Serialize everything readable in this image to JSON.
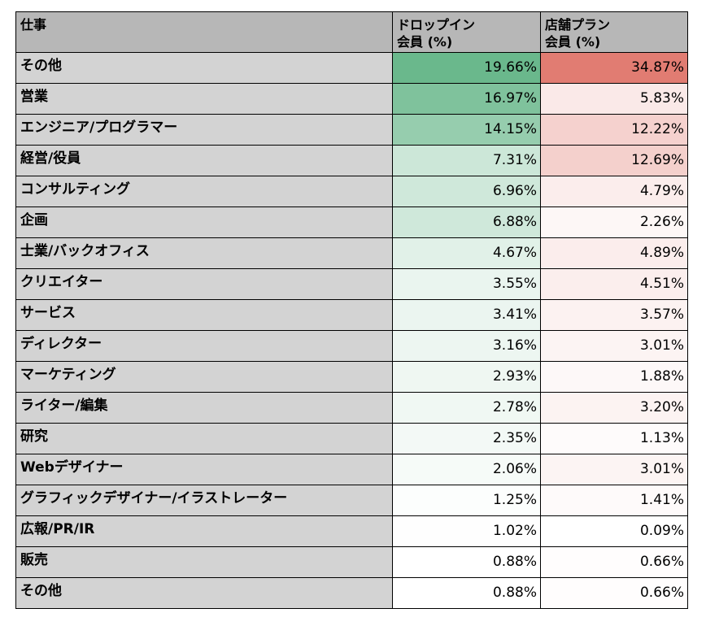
{
  "header": {
    "job": "仕事",
    "drop_in_line1": "ドロップイン",
    "drop_in_line2": "会員 (%)",
    "store_line1": "店舗プラン",
    "store_line2": "会員 (%)"
  },
  "colors": {
    "header_bg": "#b7b7b7",
    "label_bg": "#d3d3d3",
    "green_scale": "#6ab88c",
    "red_scale": "#e17c72"
  },
  "rows": [
    {
      "job": "その他",
      "drop_in": "19.66%",
      "store": "34.87%",
      "drop_in_value": 19.66,
      "store_value": 34.87
    },
    {
      "job": "営業",
      "drop_in": "16.97%",
      "store": "5.83%",
      "drop_in_value": 16.97,
      "store_value": 5.83
    },
    {
      "job": "エンジニア/プログラマー",
      "drop_in": "14.15%",
      "store": "12.22%",
      "drop_in_value": 14.15,
      "store_value": 12.22
    },
    {
      "job": "経営/役員",
      "drop_in": "7.31%",
      "store": "12.69%",
      "drop_in_value": 7.31,
      "store_value": 12.69
    },
    {
      "job": "コンサルティング",
      "drop_in": "6.96%",
      "store": "4.79%",
      "drop_in_value": 6.96,
      "store_value": 4.79
    },
    {
      "job": "企画",
      "drop_in": "6.88%",
      "store": "2.26%",
      "drop_in_value": 6.88,
      "store_value": 2.26
    },
    {
      "job": "士業/バックオフィス",
      "drop_in": "4.67%",
      "store": "4.89%",
      "drop_in_value": 4.67,
      "store_value": 4.89
    },
    {
      "job": "クリエイター",
      "drop_in": "3.55%",
      "store": "4.51%",
      "drop_in_value": 3.55,
      "store_value": 4.51
    },
    {
      "job": "サービス",
      "drop_in": "3.41%",
      "store": "3.57%",
      "drop_in_value": 3.41,
      "store_value": 3.57
    },
    {
      "job": "ディレクター",
      "drop_in": "3.16%",
      "store": "3.01%",
      "drop_in_value": 3.16,
      "store_value": 3.01
    },
    {
      "job": "マーケティング",
      "drop_in": "2.93%",
      "store": "1.88%",
      "drop_in_value": 2.93,
      "store_value": 1.88
    },
    {
      "job": "ライター/編集",
      "drop_in": "2.78%",
      "store": "3.20%",
      "drop_in_value": 2.78,
      "store_value": 3.2
    },
    {
      "job": "研究",
      "drop_in": "2.35%",
      "store": "1.13%",
      "drop_in_value": 2.35,
      "store_value": 1.13
    },
    {
      "job": "Webデザイナー",
      "drop_in": "2.06%",
      "store": "3.01%",
      "drop_in_value": 2.06,
      "store_value": 3.01
    },
    {
      "job": "グラフィックデザイナー/イラストレーター",
      "drop_in": "1.25%",
      "store": "1.41%",
      "drop_in_value": 1.25,
      "store_value": 1.41
    },
    {
      "job": "広報/PR/IR",
      "drop_in": "1.02%",
      "store": "0.09%",
      "drop_in_value": 1.02,
      "store_value": 0.09
    },
    {
      "job": "販売",
      "drop_in": "0.88%",
      "store": "0.66%",
      "drop_in_value": 0.88,
      "store_value": 0.66
    },
    {
      "job": "その他",
      "drop_in": "0.88%",
      "store": "0.66%",
      "drop_in_value": 0.88,
      "store_value": 0.66
    }
  ]
}
